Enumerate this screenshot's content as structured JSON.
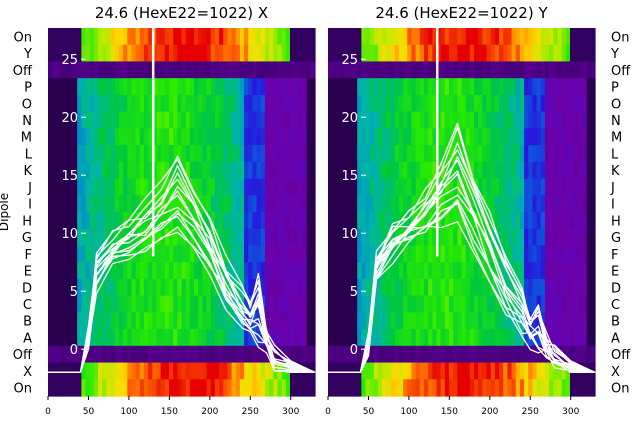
{
  "chart_data": [
    {
      "type": "heatmap",
      "title": "24.6 (HexE22=1022) X",
      "ylabel": "Dipole",
      "xlim": [
        0,
        330
      ],
      "xticks": [
        0,
        50,
        100,
        150,
        200,
        250,
        300
      ],
      "row_labels": [
        "On",
        "Y",
        "Off",
        "P",
        "O",
        "N",
        "M",
        "L",
        "K",
        "J",
        "I",
        "H",
        "G",
        "F",
        "E",
        "D",
        "C",
        "B",
        "A",
        "Off",
        "X",
        "On"
      ],
      "overlay_ylim": [
        -3,
        27
      ],
      "overlay_yticks": [
        0,
        5,
        10,
        15,
        20,
        25
      ],
      "marker_x": 130,
      "overlay_envelope": {
        "x": [
          0,
          40,
          50,
          60,
          80,
          100,
          120,
          140,
          160,
          180,
          200,
          220,
          240,
          250,
          260,
          270,
          280,
          300,
          330
        ],
        "upper": [
          -2,
          -2,
          1.5,
          8,
          10,
          11,
          12.5,
          14,
          16.5,
          14,
          11,
          7.5,
          5,
          3.5,
          6.5,
          1.5,
          0,
          -1,
          -2
        ],
        "lower": [
          -2,
          -2,
          0,
          5.5,
          7.5,
          8,
          8.5,
          9.5,
          10,
          9,
          7,
          4,
          2,
          1.5,
          0.5,
          0,
          -1.5,
          -2,
          -2
        ]
      }
    },
    {
      "type": "heatmap",
      "title": "24.6 (HexE22=1022) Y",
      "xlim": [
        0,
        330
      ],
      "xticks": [
        0,
        50,
        100,
        150,
        200,
        250,
        300
      ],
      "row_labels": [
        "On",
        "Y",
        "Off",
        "P",
        "O",
        "N",
        "M",
        "L",
        "K",
        "J",
        "I",
        "H",
        "G",
        "F",
        "E",
        "D",
        "C",
        "B",
        "A",
        "Off",
        "X",
        "On"
      ],
      "overlay_ylim": [
        -3,
        27
      ],
      "overlay_yticks": [
        0,
        5,
        10,
        15,
        20,
        25
      ],
      "marker_x": 135,
      "overlay_envelope": {
        "x": [
          0,
          40,
          50,
          60,
          80,
          100,
          120,
          140,
          160,
          180,
          200,
          220,
          240,
          250,
          260,
          270,
          280,
          300,
          330
        ],
        "upper": [
          -2,
          -2,
          1,
          8,
          10.5,
          11.5,
          13.5,
          15.5,
          19,
          15,
          11.5,
          8,
          5,
          3,
          4,
          1,
          0,
          -1,
          -2
        ],
        "lower": [
          -2,
          -2,
          0,
          6,
          8,
          9,
          10,
          11,
          11.5,
          9,
          6,
          3,
          1.5,
          0.5,
          0,
          -0.5,
          -1.5,
          -2,
          -2
        ]
      }
    }
  ]
}
